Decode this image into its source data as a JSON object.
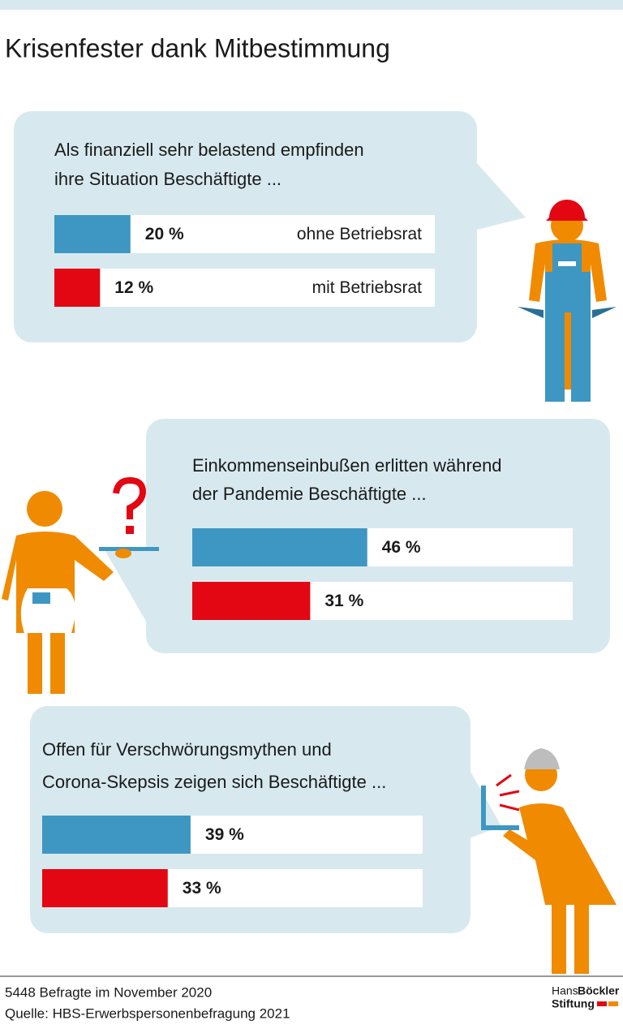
{
  "title": "Krisenfester dank Mitbestimmung",
  "chart_data": [
    {
      "type": "bar",
      "title": [
        "Als finanziell sehr belastend empfinden",
        "ihre Situation Beschäftigte ..."
      ],
      "xlim": [
        0,
        100
      ],
      "series": [
        {
          "name": "ohne Betriebsrat",
          "color": "#3d97c2",
          "values": [
            20
          ],
          "value_labels": [
            "20 %"
          ]
        },
        {
          "name": "mit Betriebsrat",
          "color": "#e30613",
          "values": [
            12
          ],
          "value_labels": [
            "12 %"
          ]
        }
      ]
    },
    {
      "type": "bar",
      "title": [
        "Einkommenseinbußen erlitten während",
        "der Pandemie Beschäftigte ..."
      ],
      "xlim": [
        0,
        100
      ],
      "series": [
        {
          "color": "#3d97c2",
          "values": [
            46
          ],
          "value_labels": [
            "46 %"
          ]
        },
        {
          "color": "#e30613",
          "values": [
            31
          ],
          "value_labels": [
            "31 %"
          ]
        }
      ]
    },
    {
      "type": "bar",
      "title": [
        "Offen für Verschwörungsmythen und",
        "Corona-Skepsis zeigen sich Beschäftigte ..."
      ],
      "xlim": [
        0,
        100
      ],
      "series": [
        {
          "color": "#3d97c2",
          "values": [
            39
          ],
          "value_labels": [
            "39 %"
          ]
        },
        {
          "color": "#e30613",
          "values": [
            33
          ],
          "value_labels": [
            "33 %"
          ]
        }
      ]
    }
  ],
  "footer": {
    "note": "5448 Befragte im November 2020",
    "source": "Quelle: HBS-Erwerbspersonenbefragung 2021",
    "logo": [
      "Hans",
      "Böckler",
      "Stiftung"
    ]
  }
}
